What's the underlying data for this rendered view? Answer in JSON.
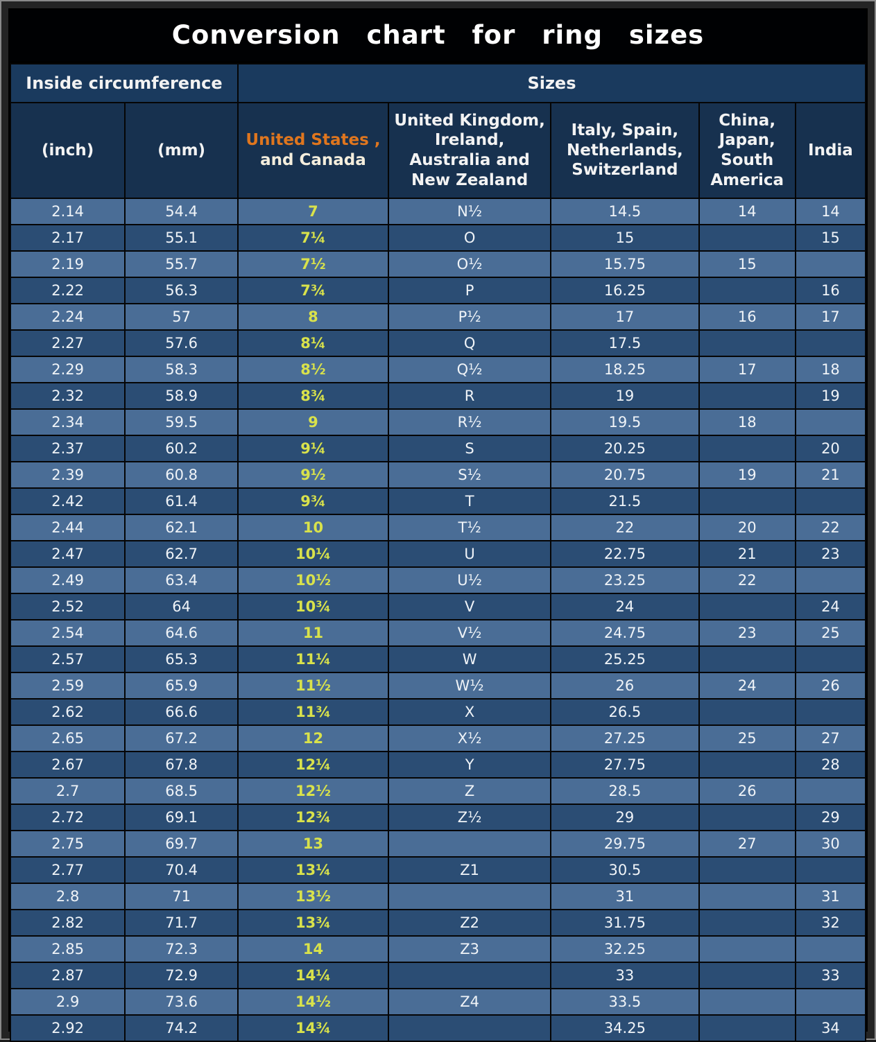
{
  "title": "Conversion  chart  for  ring  sizes",
  "group_headers": {
    "left": "Inside circumference",
    "right": "Sizes"
  },
  "us_header": {
    "line1": "United States ,",
    "line2": "and Canada"
  },
  "colors": {
    "title_bg": "#000103",
    "header_bg": "#17314f",
    "row_light": "#4a6d96",
    "row_dark": "#2b4d74",
    "us_accent_orange": "#e0761e",
    "us_value_yellow": "#d9e24b"
  },
  "chart_data": {
    "type": "table",
    "title": "Conversion chart for ring sizes",
    "column_groups": [
      {
        "label": "Inside circumference",
        "span": 2
      },
      {
        "label": "Sizes",
        "span": 5
      }
    ],
    "columns": [
      "(inch)",
      "(mm)",
      "United States , and Canada",
      "United Kingdom, Ireland, Australia and New Zealand",
      "Italy,  Spain, Netherlands, Switzerland",
      "China, Japan, South America",
      "India"
    ],
    "column_keys": [
      "inch",
      "mm",
      "us-canada",
      "uk-ireland-australia-nz",
      "italy-spain-netherlands-switzerland",
      "china-japan-south-america",
      "india"
    ],
    "rows": [
      [
        "2.14",
        "54.4",
        "7",
        "N½",
        "14.5",
        "14",
        "14"
      ],
      [
        "2.17",
        "55.1",
        "7¼",
        "O",
        "15",
        "",
        "15"
      ],
      [
        "2.19",
        "55.7",
        "7½",
        "O½",
        "15.75",
        "15",
        ""
      ],
      [
        "2.22",
        "56.3",
        "7¾",
        "P",
        "16.25",
        "",
        "16"
      ],
      [
        "2.24",
        "57",
        "8",
        "P½",
        "17",
        "16",
        "17"
      ],
      [
        "2.27",
        "57.6",
        "8¼",
        "Q",
        "17.5",
        "",
        ""
      ],
      [
        "2.29",
        "58.3",
        "8½",
        "Q½",
        "18.25",
        "17",
        "18"
      ],
      [
        "2.32",
        "58.9",
        "8¾",
        "R",
        "19",
        "",
        "19"
      ],
      [
        "2.34",
        "59.5",
        "9",
        "R½",
        "19.5",
        "18",
        ""
      ],
      [
        "2.37",
        "60.2",
        "9¼",
        "S",
        "20.25",
        "",
        "20"
      ],
      [
        "2.39",
        "60.8",
        "9½",
        "S½",
        "20.75",
        "19",
        "21"
      ],
      [
        "2.42",
        "61.4",
        "9¾",
        "T",
        "21.5",
        "",
        ""
      ],
      [
        "2.44",
        "62.1",
        "10",
        "T½",
        "22",
        "20",
        "22"
      ],
      [
        "2.47",
        "62.7",
        "10¼",
        "U",
        "22.75",
        "21",
        "23"
      ],
      [
        "2.49",
        "63.4",
        "10½",
        "U½",
        "23.25",
        "22",
        ""
      ],
      [
        "2.52",
        "64",
        "10¾",
        "V",
        "24",
        "",
        "24"
      ],
      [
        "2.54",
        "64.6",
        "11",
        "V½",
        "24.75",
        "23",
        "25"
      ],
      [
        "2.57",
        "65.3",
        "11¼",
        "W",
        "25.25",
        "",
        ""
      ],
      [
        "2.59",
        "65.9",
        "11½",
        "W½",
        "26",
        "24",
        "26"
      ],
      [
        "2.62",
        "66.6",
        "11¾",
        "X",
        "26.5",
        "",
        ""
      ],
      [
        "2.65",
        "67.2",
        "12",
        "X½",
        "27.25",
        "25",
        "27"
      ],
      [
        "2.67",
        "67.8",
        "12¼",
        "Y",
        "27.75",
        "",
        "28"
      ],
      [
        "2.7",
        "68.5",
        "12½",
        "Z",
        "28.5",
        "26",
        ""
      ],
      [
        "2.72",
        "69.1",
        "12¾",
        "Z½",
        "29",
        "",
        "29"
      ],
      [
        "2.75",
        "69.7",
        "13",
        "",
        "29.75",
        "27",
        "30"
      ],
      [
        "2.77",
        "70.4",
        "13¼",
        "Z1",
        "30.5",
        "",
        ""
      ],
      [
        "2.8",
        "71",
        "13½",
        "",
        "31",
        "",
        "31"
      ],
      [
        "2.82",
        "71.7",
        "13¾",
        "Z2",
        "31.75",
        "",
        "32"
      ],
      [
        "2.85",
        "72.3",
        "14",
        "Z3",
        "32.25",
        "",
        ""
      ],
      [
        "2.87",
        "72.9",
        "14¼",
        "",
        "33",
        "",
        "33"
      ],
      [
        "2.9",
        "73.6",
        "14½",
        "Z4",
        "33.5",
        "",
        ""
      ],
      [
        "2.92",
        "74.2",
        "14¾",
        "",
        "34.25",
        "",
        "34"
      ]
    ]
  }
}
